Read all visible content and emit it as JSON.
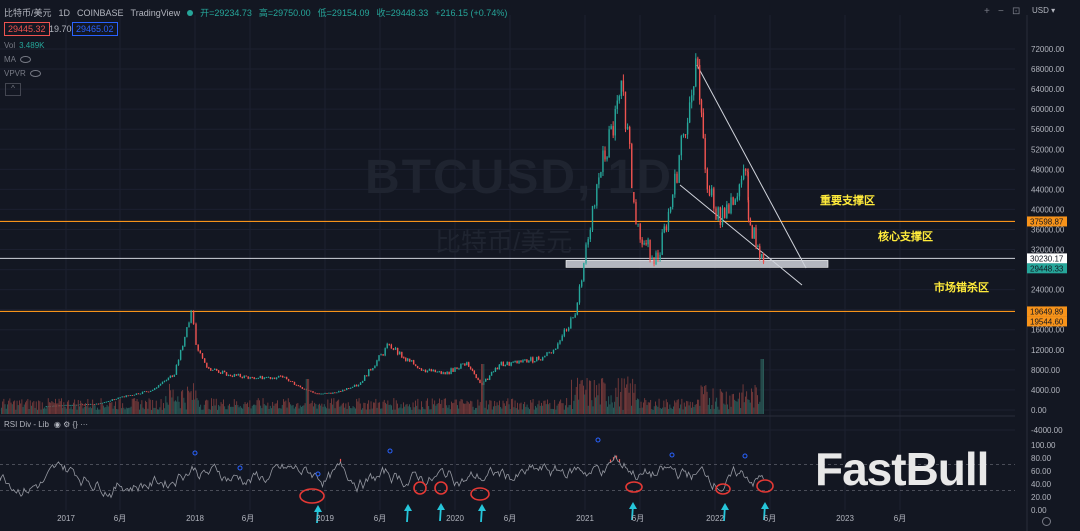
{
  "header": {
    "symbol": "比特币/美元",
    "interval": "1D",
    "exchange": "COINBASE",
    "source": "TradingView",
    "open": "开=29234.73",
    "high": "高=29750.00",
    "low": "低=29154.09",
    "close": "收=29448.33",
    "change": "+216.15 (+0.74%)",
    "bid": "29445.32",
    "spread": "19.70",
    "ask": "29465.02"
  },
  "indicators": {
    "vol_label": "Vol",
    "vol_value": "3.489K",
    "ma": "MA",
    "vpvr": "VPVR",
    "collapse": "^"
  },
  "rsi_label": "RSI Div - Lib",
  "rsi_icons": "◉ ⚙ {} ···",
  "toolbar": {
    "plus": "+",
    "minus": "−",
    "expand": "⊡"
  },
  "currency": "USD ▾",
  "watermark": {
    "ticker": "BTCUSD, 1D",
    "name": "比特币/美元"
  },
  "brand": "FastBull",
  "colors": {
    "background": "#131722",
    "up": "#26a69a",
    "down": "#ef5350",
    "support_orange": "#f7931a",
    "annotation_yellow": "#ffeb3b",
    "rsi_line": "#9598a1",
    "circle": "#e53935",
    "arrow": "#26c6da"
  },
  "chart_data": [
    {
      "type": "line",
      "x": [
        "2016-11",
        "2017-01",
        "2017-04",
        "2017-06",
        "2017-09",
        "2017-11",
        "2017-12-17",
        "2018-01",
        "2018-02",
        "2018-04",
        "2018-06",
        "2018-09",
        "2018-11",
        "2018-12",
        "2019-02",
        "2019-04",
        "2019-06-26",
        "2019-08",
        "2019-10",
        "2019-12",
        "2020-02",
        "2020-03-12",
        "2020-05",
        "2020-07",
        "2020-09",
        "2020-10",
        "2020-11",
        "2020-12",
        "2021-01",
        "2021-02",
        "2021-04-14",
        "2021-05-19",
        "2021-06",
        "2021-07-20",
        "2021-09",
        "2021-10",
        "2021-11-10",
        "2021-12",
        "2022-01",
        "2022-02",
        "2022-03-29",
        "2022-04",
        "2022-05-12"
      ],
      "series": [
        {
          "values": [
            700,
            1000,
            1200,
            2500,
            4000,
            7000,
            19650,
            13000,
            8500,
            7000,
            6500,
            6500,
            4200,
            3300,
            3500,
            5000,
            13000,
            10500,
            8000,
            7200,
            9500,
            5000,
            9000,
            9500,
            10500,
            12000,
            16000,
            19000,
            33000,
            45000,
            63500,
            37000,
            34000,
            30000,
            43000,
            55000,
            68800,
            48000,
            38000,
            41000,
            47500,
            38000,
            29448
          ]
        }
      ],
      "y_ticks": [
        "72000.00",
        "68000.00",
        "64000.00",
        "60000.00",
        "56000.00",
        "52000.00",
        "48000.00",
        "44000.00",
        "40000.00",
        "36000.00",
        "32000.00",
        "28000.00",
        "24000.00",
        "20000.00",
        "16000.00",
        "12000.00",
        "8000.00",
        "4000.00",
        "0.00",
        "-4000.00"
      ],
      "x_ticks": [
        "2017",
        "6月",
        "2018",
        "6月",
        "2019",
        "6月",
        "2020",
        "6月",
        "2021",
        "6月",
        "2022",
        "6月",
        "2023",
        "6月"
      ],
      "price_tags": [
        "37598.87",
        "30230.17",
        "29448.33",
        "19649.89",
        "19544.60"
      ],
      "annotations": [
        "重要支撑区",
        "核心支撑区",
        "市场错杀区"
      ],
      "levels": [
        37598.87,
        30230.17,
        19649.89
      ]
    },
    {
      "type": "line",
      "name": "RSI Div - Lib",
      "y_ticks": [
        "100.00",
        "80.00",
        "60.00",
        "40.00",
        "20.00",
        "0.00"
      ],
      "ylim": [
        0,
        100
      ],
      "guides": [
        70,
        30
      ]
    }
  ]
}
